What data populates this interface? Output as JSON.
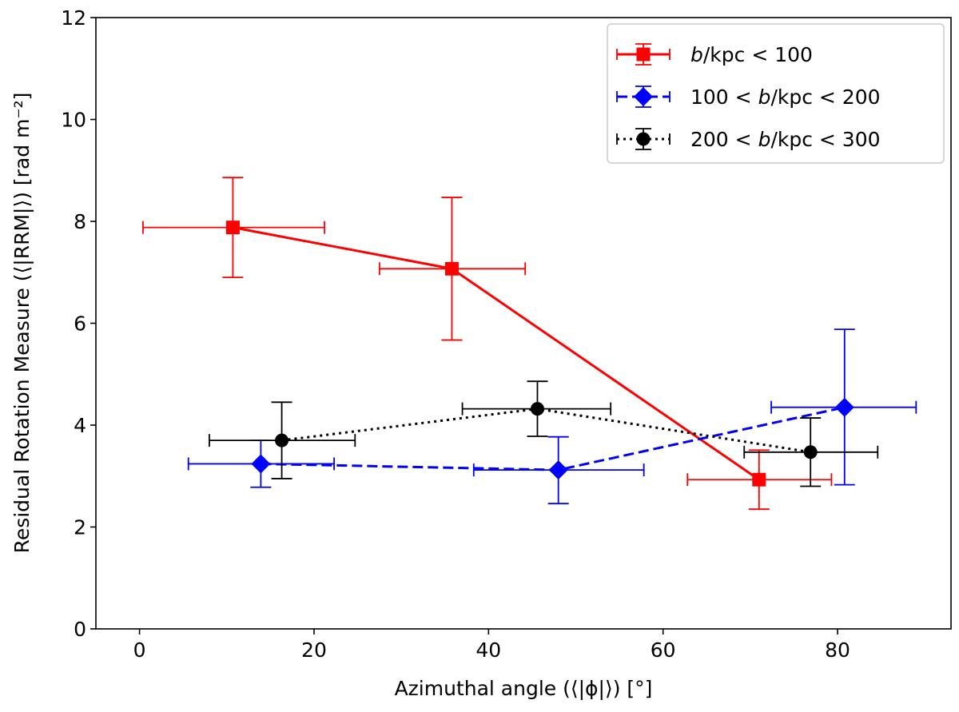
{
  "chart_data": {
    "type": "scatter",
    "title": "",
    "xlabel": "Azimuthal angle (⟨|ϕ|⟩) [°]",
    "ylabel": "Residual Rotation Measure (⟨|RRM|⟩) [rad m⁻²]",
    "xlim": [
      -5,
      93
    ],
    "ylim": [
      0,
      12
    ],
    "xticks": [
      0,
      20,
      40,
      60,
      80
    ],
    "yticks": [
      0,
      2,
      4,
      6,
      8,
      10,
      12
    ],
    "grid": false,
    "legend_position": "top-right",
    "series": [
      {
        "name": "b/kpc < 100",
        "legend_parts": [
          "b",
          "/kpc < 100"
        ],
        "color": "#ff0000",
        "marker": "square",
        "linestyle": "solid",
        "points": [
          {
            "x": 10.7,
            "y": 7.88,
            "xlo": 0.4,
            "xhi": 21.2,
            "ylo": 6.9,
            "yhi": 8.86
          },
          {
            "x": 35.8,
            "y": 7.07,
            "xlo": 27.5,
            "xhi": 44.2,
            "ylo": 5.67,
            "yhi": 8.47
          },
          {
            "x": 71.0,
            "y": 2.93,
            "xlo": 62.8,
            "xhi": 79.3,
            "ylo": 2.35,
            "yhi": 3.51
          }
        ]
      },
      {
        "name": "100 < b/kpc < 200",
        "legend_parts": [
          "100 < ",
          "b",
          "/kpc < 200"
        ],
        "color": "#0000ff",
        "marker": "diamond",
        "linestyle": "dashed",
        "points": [
          {
            "x": 13.9,
            "y": 3.24,
            "xlo": 5.6,
            "xhi": 22.3,
            "ylo": 2.78,
            "yhi": 3.7
          },
          {
            "x": 48.0,
            "y": 3.12,
            "xlo": 38.3,
            "xhi": 57.8,
            "ylo": 2.46,
            "yhi": 3.77
          },
          {
            "x": 80.8,
            "y": 4.35,
            "xlo": 72.4,
            "xhi": 89.0,
            "ylo": 2.83,
            "yhi": 5.88
          }
        ]
      },
      {
        "name": "200 < b/kpc < 300",
        "legend_parts": [
          "200 < ",
          "b",
          "/kpc < 300"
        ],
        "color": "#000000",
        "marker": "circle",
        "linestyle": "dotted",
        "points": [
          {
            "x": 16.3,
            "y": 3.7,
            "xlo": 8.0,
            "xhi": 24.7,
            "ylo": 2.95,
            "yhi": 4.45
          },
          {
            "x": 45.6,
            "y": 4.32,
            "xlo": 37.0,
            "xhi": 54.0,
            "ylo": 3.78,
            "yhi": 4.86
          },
          {
            "x": 76.9,
            "y": 3.47,
            "xlo": 69.3,
            "xhi": 84.6,
            "ylo": 2.8,
            "yhi": 4.14
          }
        ]
      }
    ]
  }
}
